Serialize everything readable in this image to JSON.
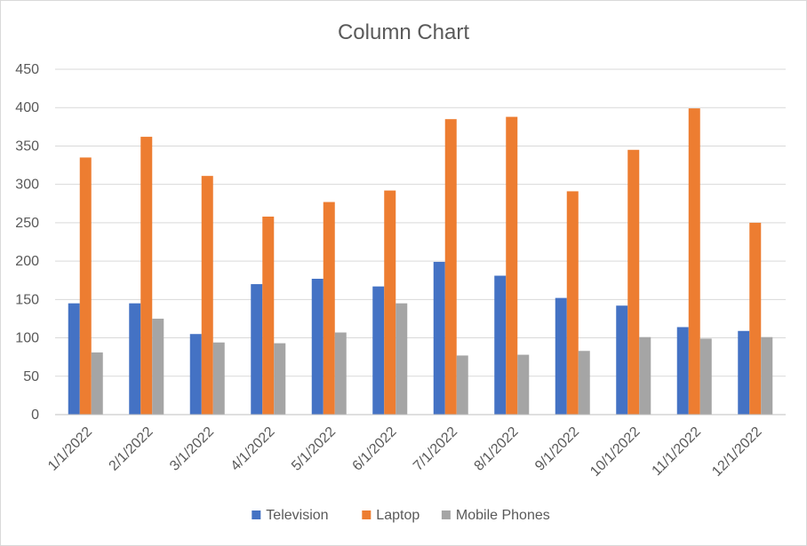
{
  "chart_data": {
    "type": "bar",
    "title": "Column Chart",
    "xlabel": "",
    "ylabel": "",
    "ylim": [
      0,
      450
    ],
    "yticks": [
      "0",
      "50",
      "100",
      "150",
      "200",
      "250",
      "300",
      "350",
      "400",
      "450"
    ],
    "grid": true,
    "legend_position": "bottom",
    "categories": [
      "1/1/2022",
      "2/1/2022",
      "3/1/2022",
      "4/1/2022",
      "5/1/2022",
      "6/1/2022",
      "7/1/2022",
      "8/1/2022",
      "9/1/2022",
      "10/1/2022",
      "11/1/2022",
      "12/1/2022"
    ],
    "series": [
      {
        "name": "Television",
        "color": "#4472c4",
        "values": [
          145,
          145,
          105,
          170,
          177,
          167,
          199,
          181,
          152,
          142,
          114,
          109
        ]
      },
      {
        "name": "Laptop",
        "color": "#ed7d31",
        "values": [
          335,
          362,
          311,
          258,
          277,
          292,
          385,
          388,
          291,
          345,
          399,
          250
        ]
      },
      {
        "name": "Mobile Phones",
        "color": "#a5a5a5",
        "values": [
          81,
          125,
          94,
          93,
          107,
          145,
          77,
          78,
          83,
          101,
          99,
          101
        ]
      }
    ]
  }
}
